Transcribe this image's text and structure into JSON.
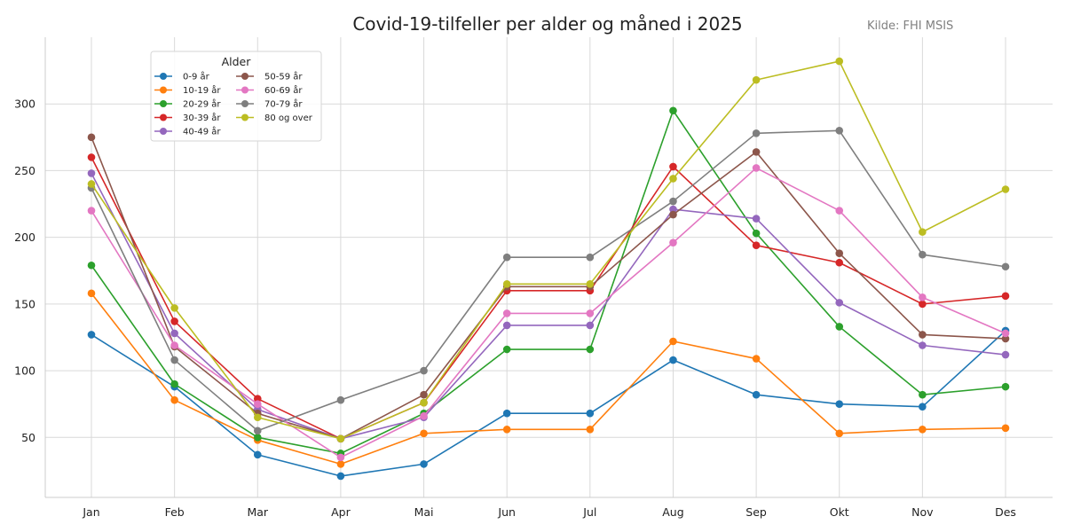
{
  "chart_data": {
    "type": "line",
    "title": "Covid-19-tilfeller per alder og måned i 2025",
    "source": "Kilde: FHI MSIS",
    "xlabel": "",
    "ylabel": "",
    "categories": [
      "Jan",
      "Feb",
      "Mar",
      "Apr",
      "Mai",
      "Jun",
      "Jul",
      "Aug",
      "Sep",
      "Okt",
      "Nov",
      "Des"
    ],
    "ylim": [
      5,
      350
    ],
    "yticks": [
      50,
      100,
      150,
      200,
      250,
      300
    ],
    "grid": true,
    "legend": {
      "title": "Alder",
      "placement": "top-left",
      "columns": 2
    },
    "series": [
      {
        "name": "0-9 år",
        "color": "#1f77b4",
        "values": [
          127,
          88,
          37,
          21,
          30,
          68,
          68,
          108,
          82,
          75,
          73,
          130
        ]
      },
      {
        "name": "10-19 år",
        "color": "#ff7f0e",
        "values": [
          158,
          78,
          48,
          30,
          53,
          56,
          56,
          122,
          109,
          53,
          56,
          57
        ]
      },
      {
        "name": "20-29 år",
        "color": "#2ca02c",
        "values": [
          179,
          90,
          50,
          38,
          68,
          116,
          116,
          295,
          203,
          133,
          82,
          88
        ]
      },
      {
        "name": "30-39 år",
        "color": "#d62728",
        "values": [
          260,
          137,
          79,
          49,
          76,
          160,
          160,
          253,
          194,
          181,
          150,
          156
        ]
      },
      {
        "name": "40-49 år",
        "color": "#9467bd",
        "values": [
          248,
          128,
          71,
          49,
          65,
          134,
          134,
          221,
          214,
          151,
          119,
          112
        ]
      },
      {
        "name": "50-59 år",
        "color": "#8c564b",
        "values": [
          275,
          118,
          68,
          49,
          82,
          163,
          163,
          217,
          264,
          188,
          127,
          124
        ]
      },
      {
        "name": "60-69 år",
        "color": "#e377c2",
        "values": [
          220,
          119,
          75,
          35,
          66,
          143,
          143,
          196,
          252,
          220,
          155,
          128
        ]
      },
      {
        "name": "70-79 år",
        "color": "#7f7f7f",
        "values": [
          237,
          108,
          55,
          78,
          100,
          185,
          185,
          227,
          278,
          280,
          187,
          178
        ]
      },
      {
        "name": "80 og over",
        "color": "#bcbd22",
        "values": [
          240,
          147,
          65,
          49,
          76,
          165,
          165,
          244,
          318,
          332,
          204,
          236
        ]
      }
    ]
  }
}
